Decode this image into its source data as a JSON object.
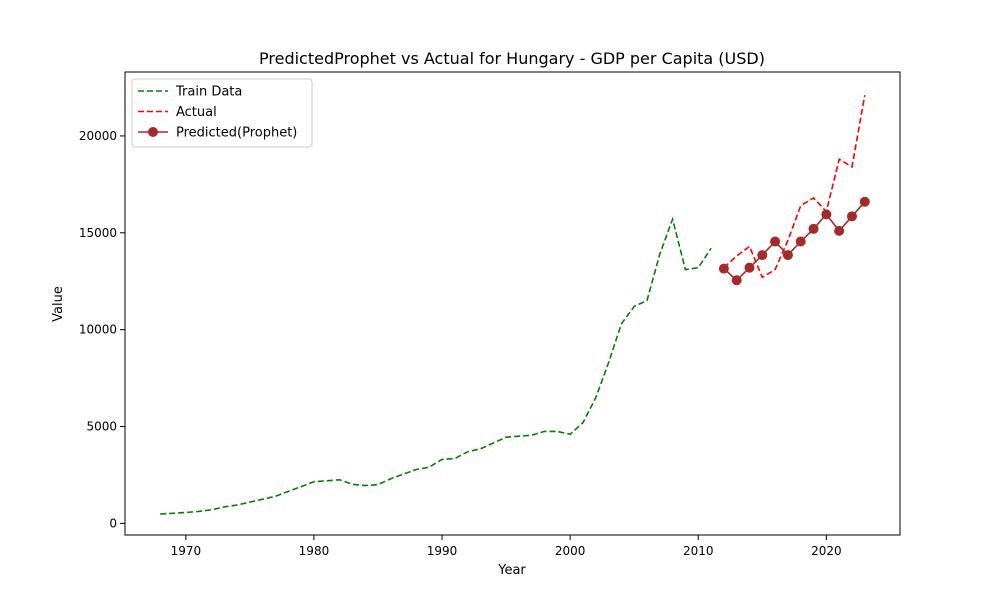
{
  "chart_data": {
    "type": "line",
    "title": "PredictedProphet vs Actual for Hungary - GDP per Capita (USD)",
    "xlabel": "Year",
    "ylabel": "Value",
    "xlim": [
      1965.25,
      2025.75
    ],
    "ylim": [
      -600,
      23300
    ],
    "xticks": [
      1970,
      1980,
      1990,
      2000,
      2010,
      2020
    ],
    "yticks": [
      0,
      5000,
      10000,
      15000,
      20000
    ],
    "grid": false,
    "legend": "top-left",
    "series": [
      {
        "name": "Train Data",
        "style": "dashed",
        "color": "#008000",
        "x": [
          1968,
          1969,
          1970,
          1971,
          1972,
          1973,
          1974,
          1975,
          1976,
          1977,
          1978,
          1979,
          1980,
          1981,
          1982,
          1983,
          1984,
          1985,
          1986,
          1987,
          1988,
          1989,
          1990,
          1991,
          1992,
          1993,
          1994,
          1995,
          1996,
          1997,
          1998,
          1999,
          2000,
          2001,
          2002,
          2003,
          2004,
          2005,
          2006,
          2007,
          2008,
          2009,
          2010,
          2011
        ],
        "y": [
          480,
          520,
          560,
          620,
          700,
          850,
          950,
          1100,
          1250,
          1400,
          1650,
          1900,
          2150,
          2200,
          2250,
          2020,
          1950,
          2000,
          2300,
          2550,
          2780,
          2900,
          3300,
          3350,
          3700,
          3850,
          4150,
          4450,
          4500,
          4550,
          4750,
          4750,
          4600,
          5200,
          6500,
          8300,
          10300,
          11200,
          11500,
          13900,
          15700,
          13100,
          13200,
          14200
        ]
      },
      {
        "name": "Actual",
        "style": "dashed",
        "color": "#ff0000",
        "x": [
          2012,
          2013,
          2014,
          2015,
          2016,
          2017,
          2018,
          2019,
          2020,
          2021,
          2022,
          2023
        ],
        "y": [
          13200,
          13800,
          14300,
          12700,
          13100,
          14600,
          16400,
          16800,
          16100,
          18800,
          18400,
          22100
        ]
      },
      {
        "name": "Predicted(Prophet)",
        "style": "solid-markers",
        "color": "#a52a2a",
        "x": [
          2012,
          2013,
          2014,
          2015,
          2016,
          2017,
          2018,
          2019,
          2020,
          2021,
          2022,
          2023
        ],
        "y": [
          13150,
          12550,
          13200,
          13850,
          14550,
          13850,
          14550,
          15200,
          15950,
          15100,
          15850,
          16600
        ]
      }
    ]
  }
}
